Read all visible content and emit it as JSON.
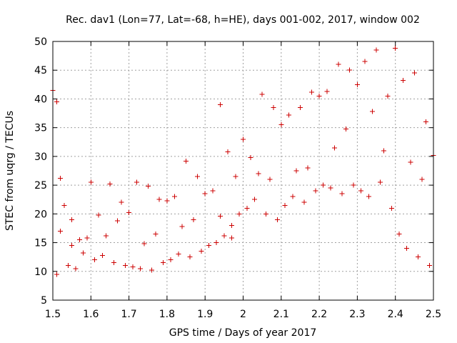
{
  "chart_data": {
    "type": "scatter",
    "title": "Rec. dav1 (Lon=77, Lat=-68, h=HE), days 001-002, 2017, window 002",
    "xlabel": "GPS time / Days of year 2017",
    "ylabel": "STEC from uqrg / TECUs",
    "xlim": [
      1.5,
      2.5
    ],
    "ylim": [
      5,
      50
    ],
    "xticks": [
      "1.5",
      "1.6",
      "1.7",
      "1.8",
      "1.9",
      "2",
      "2.1",
      "2.2",
      "2.3",
      "2.4",
      "2.5"
    ],
    "yticks": [
      "5",
      "10",
      "15",
      "20",
      "25",
      "30",
      "35",
      "40",
      "45",
      "50"
    ],
    "grid": true,
    "marker": "plus",
    "color": "#cc0000",
    "series": [
      {
        "name": "STEC",
        "x": [
          1.5,
          1.51,
          1.52,
          1.53,
          1.55,
          1.57,
          1.6,
          1.62,
          1.65,
          1.68,
          1.7,
          1.72,
          1.75,
          1.78,
          1.8,
          1.82,
          1.85,
          1.88,
          1.9,
          1.92,
          1.94,
          1.96,
          1.98,
          2.0,
          2.02,
          2.05,
          2.08,
          2.1,
          2.12,
          2.15,
          2.18,
          2.2,
          2.22,
          2.25,
          2.28,
          2.3,
          2.32,
          2.35,
          2.38,
          2.4,
          2.42,
          2.45,
          2.48,
          2.5,
          1.51,
          1.54,
          1.56,
          1.58,
          1.61,
          1.63,
          1.66,
          1.69,
          1.71,
          1.73,
          1.76,
          1.79,
          1.81,
          1.83,
          1.86,
          1.89,
          1.91,
          1.93,
          1.95,
          1.97,
          1.99,
          2.01,
          2.03,
          2.06,
          2.09,
          2.11,
          2.13,
          2.16,
          2.19,
          2.21,
          2.23,
          2.26,
          2.29,
          2.31,
          2.33,
          2.36,
          2.39,
          2.41,
          2.43,
          2.46,
          2.49,
          1.52,
          1.55,
          1.59,
          1.64,
          1.67,
          1.74,
          1.77,
          1.84,
          1.87,
          1.94,
          1.97,
          2.04,
          2.07,
          2.14,
          2.17,
          2.24,
          2.27,
          2.34,
          2.37,
          2.44,
          2.47
        ],
        "y": [
          41.5,
          39.5,
          26.2,
          21.5,
          19.0,
          15.5,
          25.5,
          19.8,
          25.2,
          22.0,
          20.2,
          25.5,
          24.8,
          22.5,
          22.3,
          23.0,
          29.2,
          26.5,
          23.5,
          24.0,
          39.0,
          30.8,
          26.5,
          33.0,
          29.8,
          40.8,
          38.5,
          35.5,
          37.2,
          38.5,
          41.2,
          40.5,
          41.3,
          46.0,
          45.0,
          42.5,
          46.5,
          48.5,
          40.5,
          48.8,
          43.2,
          44.5,
          36.0,
          30.2,
          9.5,
          11.0,
          10.5,
          13.2,
          12.0,
          12.8,
          11.5,
          11.0,
          10.8,
          10.5,
          10.2,
          11.5,
          12.0,
          13.0,
          12.5,
          13.5,
          14.5,
          15.0,
          16.2,
          18.0,
          20.0,
          21.0,
          22.5,
          20.0,
          19.0,
          21.5,
          23.0,
          22.0,
          24.0,
          25.0,
          24.5,
          23.5,
          25.0,
          24.0,
          23.0,
          25.5,
          21.0,
          16.5,
          14.0,
          12.5,
          11.0,
          17.0,
          14.5,
          15.8,
          16.2,
          18.8,
          14.8,
          16.5,
          17.8,
          19.0,
          19.6,
          15.8,
          27.0,
          26.0,
          27.5,
          28.0,
          31.5,
          34.8,
          37.8,
          31.0,
          29.0,
          26.0
        ]
      }
    ]
  }
}
